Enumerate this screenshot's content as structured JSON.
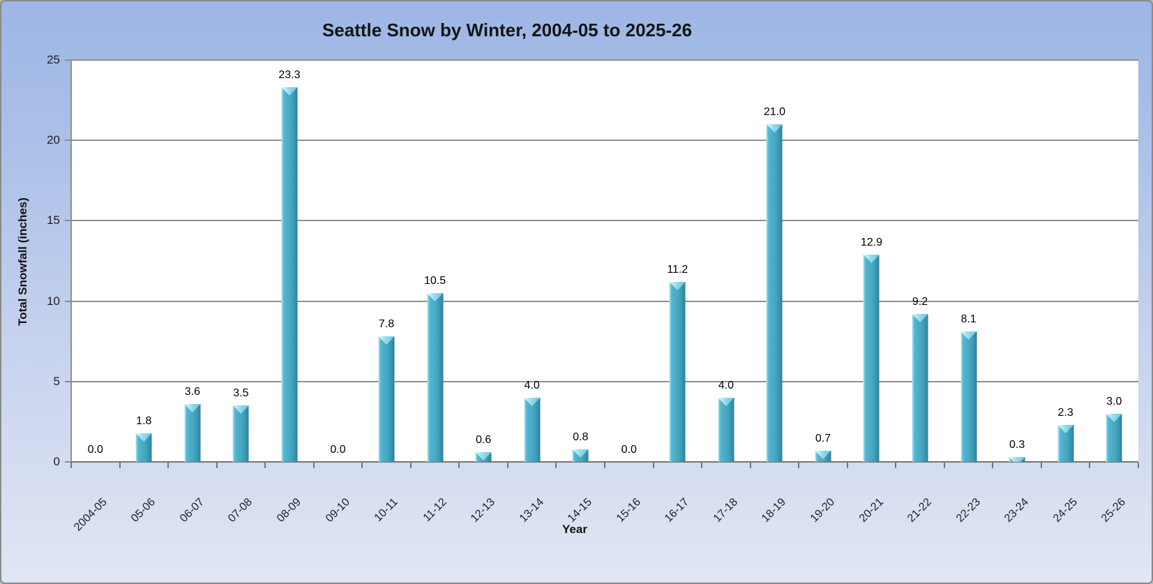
{
  "chart_data": {
    "type": "bar",
    "title": "Seattle Snow by Winter, 2004-05 to 2025-26",
    "xlabel": "Year",
    "ylabel": "Total Snowfall (inches)",
    "ylim": [
      0,
      25
    ],
    "yticks": [
      0,
      5,
      10,
      15,
      20,
      25
    ],
    "grid": true,
    "legend": false,
    "data_labels_shown": true,
    "categories": [
      "2004-05",
      "05-06",
      "06-07",
      "07-08",
      "08-09",
      "09-10",
      "10-11",
      "11-12",
      "12-13",
      "13-14",
      "14-15",
      "15-16",
      "16-17",
      "17-18",
      "18-19",
      "19-20",
      "20-21",
      "21-22",
      "22-23",
      "23-24",
      "24-25",
      "25-26"
    ],
    "values": [
      0.0,
      1.8,
      3.6,
      3.5,
      23.3,
      0.0,
      7.8,
      10.5,
      0.6,
      4.0,
      0.8,
      0.0,
      11.2,
      4.0,
      21.0,
      0.7,
      12.9,
      9.2,
      8.1,
      0.3,
      2.3,
      3.0
    ],
    "data_labels": [
      "0.0",
      "1.8",
      "3.6",
      "3.5",
      "23.3",
      "0.0",
      "7.8",
      "10.5",
      "0.6",
      "4.0",
      "0.8",
      "0.0",
      "11.2",
      "4.0",
      "21.0",
      "0.7",
      "12.9",
      "9.2",
      "8.1",
      "0.3",
      "2.3",
      "3.0"
    ]
  },
  "colors": {
    "bar_fill": "#4BACC6",
    "bar_edge_dark": "#2B7F9B",
    "bar_highlight": "#94DCEC",
    "background_top": "#9DB6E5",
    "background_bottom": "#E1E6F3",
    "plot_background": "#FFFFFF",
    "gridline": "#8E8E8E",
    "axis_line": "#757575",
    "text": "#1A1A1A"
  }
}
